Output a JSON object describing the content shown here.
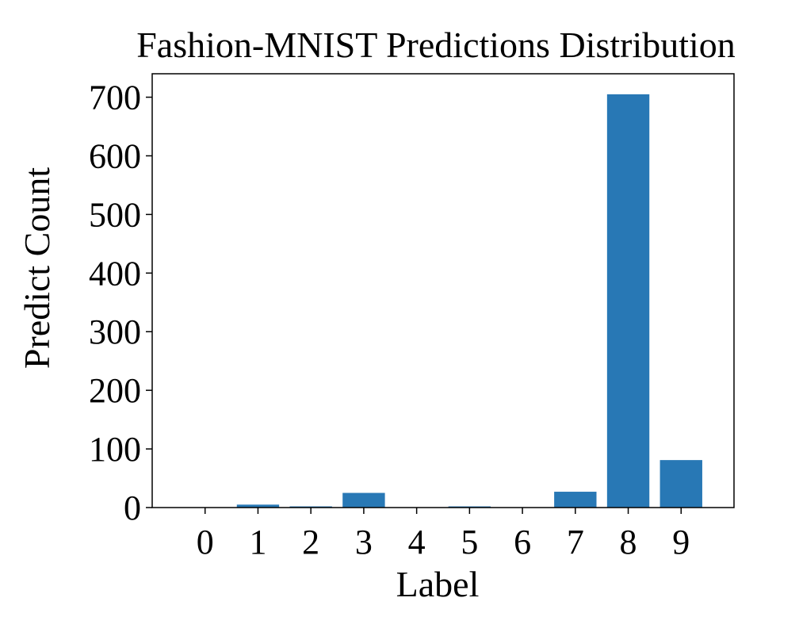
{
  "chart_data": {
    "type": "bar",
    "title": "Fashion-MNIST Predictions Distribution",
    "xlabel": "Label",
    "ylabel": "Predict Count",
    "categories": [
      "0",
      "1",
      "2",
      "3",
      "4",
      "5",
      "6",
      "7",
      "8",
      "9"
    ],
    "values": [
      0,
      5,
      2,
      25,
      0,
      2,
      0,
      27,
      705,
      81
    ],
    "ylim": [
      0,
      740
    ],
    "yticks": [
      "0",
      "100",
      "200",
      "300",
      "400",
      "500",
      "600",
      "700"
    ],
    "grid": false,
    "bar_color": "#2878b5"
  }
}
